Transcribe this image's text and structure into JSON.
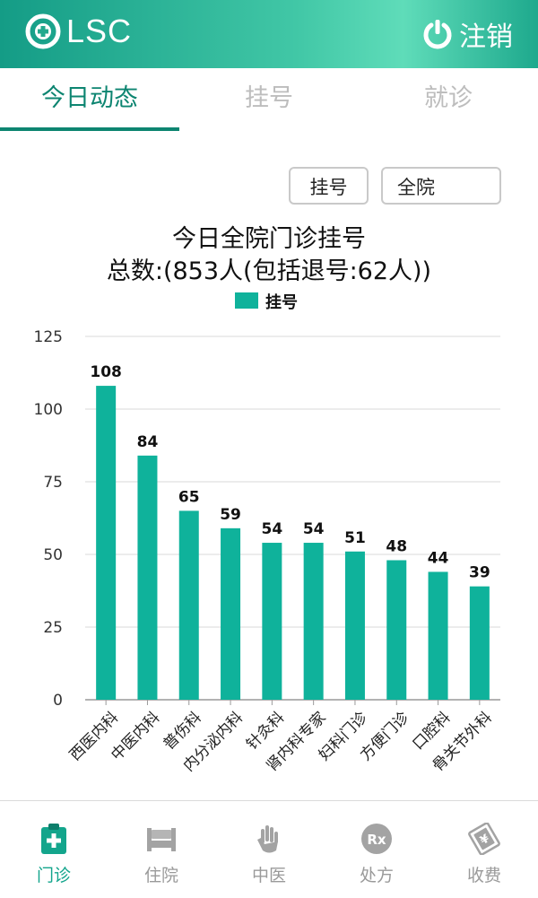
{
  "header": {
    "logo_text": "LSC",
    "logout_label": "注销"
  },
  "tabs": [
    {
      "label": "今日动态",
      "active": true
    },
    {
      "label": "挂号",
      "active": false
    },
    {
      "label": "就诊",
      "active": false
    }
  ],
  "filters": {
    "type_label": "挂号",
    "scope_label": "全院"
  },
  "chart_title": {
    "line1": "今日全院门诊挂号",
    "line2": "总数:(853人(包括退号:62人))"
  },
  "colors": {
    "accent": "#0d8571",
    "bar": "#0fb29b",
    "header_start": "#149c86",
    "header_end": "#5fdcb9"
  },
  "chart_data": {
    "type": "bar",
    "categories": [
      "西医内科",
      "中医内科",
      "普伤科",
      "内分泌内科",
      "针灸科",
      "肾内科专家",
      "妇科门诊",
      "方便门诊",
      "口腔科",
      "骨关节外科"
    ],
    "series": [
      {
        "name": "挂号",
        "values": [
          108,
          84,
          65,
          59,
          54,
          54,
          51,
          48,
          44,
          39
        ]
      }
    ],
    "ylim": [
      0,
      125
    ],
    "yticks": [
      0,
      25,
      50,
      75,
      100,
      125
    ],
    "legend": "top-center",
    "grid": true,
    "data_labels": true
  },
  "bottom_nav": [
    {
      "label": "门诊",
      "icon": "clipboard-icon",
      "active": true
    },
    {
      "label": "住院",
      "icon": "bed-icon",
      "active": false
    },
    {
      "label": "中医",
      "icon": "hand-icon",
      "active": false
    },
    {
      "label": "处方",
      "icon": "rx-icon",
      "active": false
    },
    {
      "label": "收费",
      "icon": "money-icon",
      "active": false
    }
  ]
}
